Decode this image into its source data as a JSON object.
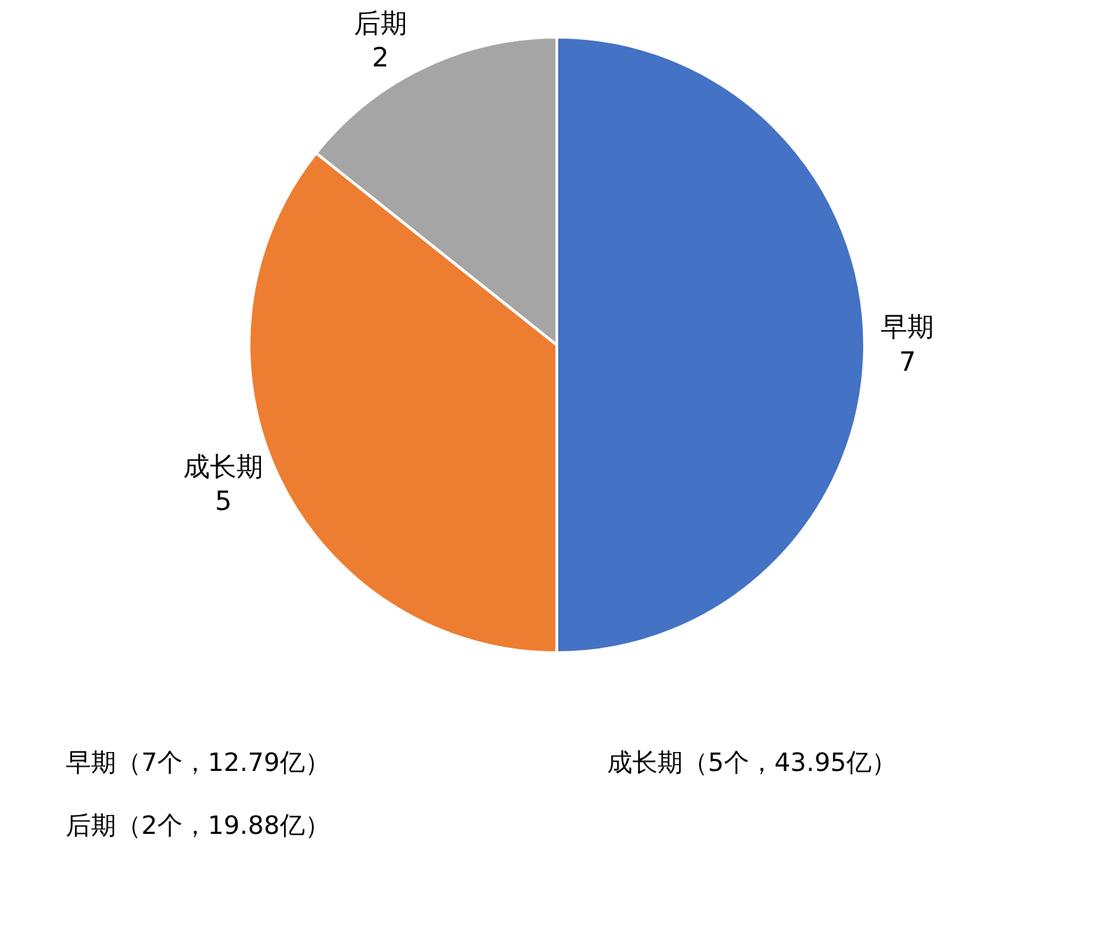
{
  "chart_data": {
    "type": "pie",
    "categories": [
      "早期",
      "成长期",
      "后期"
    ],
    "values": [
      7,
      5,
      2
    ],
    "colors": [
      "#4472c4",
      "#ed7d31",
      "#a5a5a5"
    ],
    "data_labels": true,
    "annotations": [
      "早期（7个，12.79亿）",
      "后期（2个，19.88亿）",
      "成长期（5个，43.95亿）"
    ]
  }
}
